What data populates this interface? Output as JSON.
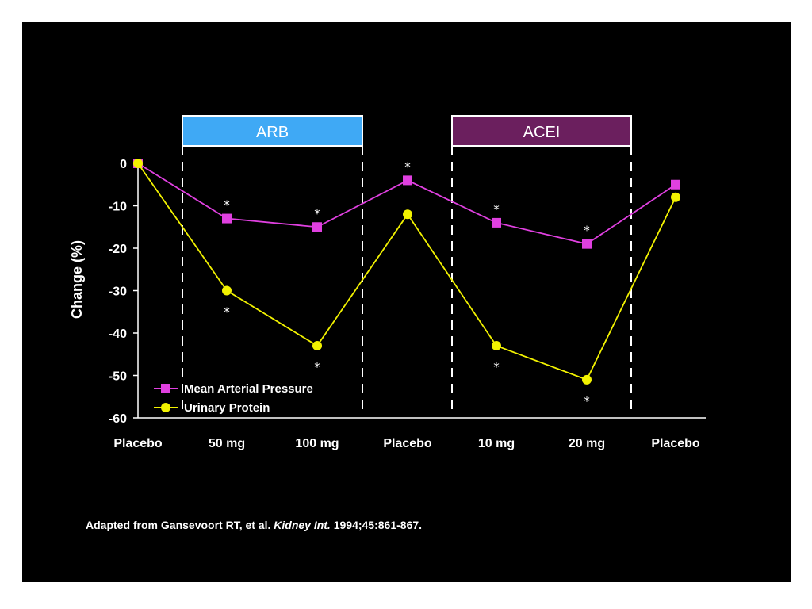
{
  "colors": {
    "background": "#000000",
    "arb_box": "#3fa9f5",
    "acei_box": "#6b1f5e",
    "map_series": "#e040e0",
    "protein_series": "#f2f200",
    "text": "#ffffff"
  },
  "chart_data": {
    "type": "line",
    "categories": [
      "Placebo",
      "50 mg",
      "100 mg",
      "Placebo",
      "10 mg",
      "20 mg",
      "Placebo"
    ],
    "ylabel": "Change (%)",
    "ylim": [
      -60,
      0
    ],
    "yticks": [
      0,
      -10,
      -20,
      -30,
      -40,
      -50,
      -60
    ],
    "series": [
      {
        "name": "Mean Arterial Pressure",
        "marker": "square",
        "color": "#e040e0",
        "values": [
          0,
          -13,
          -15,
          -4,
          -14,
          -19,
          -5
        ]
      },
      {
        "name": "Urinary Protein",
        "marker": "circle",
        "color": "#f2f200",
        "values": [
          0,
          -30,
          -43,
          -12,
          -43,
          -51,
          -8
        ]
      }
    ],
    "significance_marks": {
      "symbol": "*",
      "Mean Arterial Pressure": [
        false,
        true,
        true,
        true,
        true,
        true,
        false
      ],
      "Urinary Protein": [
        false,
        true,
        true,
        false,
        true,
        true,
        false
      ]
    },
    "groups": [
      {
        "label": "ARB",
        "from_category": 1,
        "to_category": 2,
        "color": "#3fa9f5"
      },
      {
        "label": "ACEI",
        "from_category": 4,
        "to_category": 5,
        "color": "#6b1f5e"
      }
    ],
    "legend_position": "bottom-left"
  },
  "citation": {
    "prefix": "Adapted from Gansevoort RT, et al. ",
    "journal": "Kidney Int.",
    "suffix": " 1994;45:861-867."
  }
}
